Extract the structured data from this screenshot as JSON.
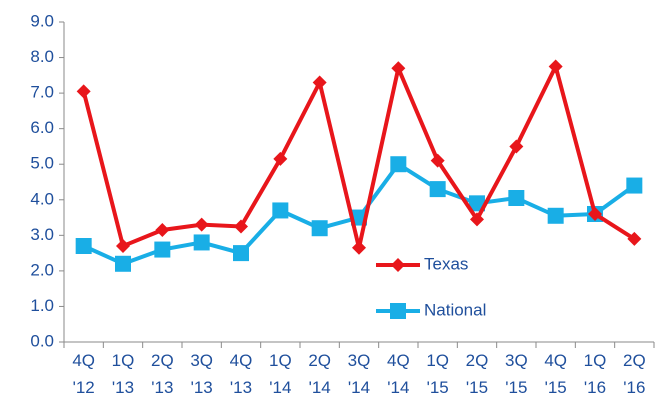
{
  "chart_data": {
    "type": "line",
    "categories": [
      "4Q '12",
      "1Q '13",
      "2Q '13",
      "3Q '13",
      "4Q '13",
      "1Q '14",
      "2Q '14",
      "3Q '14",
      "4Q '14",
      "1Q '15",
      "2Q '15",
      "3Q '15",
      "4Q '15",
      "1Q '16",
      "2Q '16"
    ],
    "series": [
      {
        "name": "Texas",
        "color": "#e8161b",
        "marker": "diamond",
        "values": [
          7.05,
          2.7,
          3.15,
          3.3,
          3.25,
          5.15,
          7.3,
          2.65,
          7.7,
          5.1,
          3.45,
          5.5,
          7.75,
          3.6,
          2.9
        ]
      },
      {
        "name": "National",
        "color": "#19aee6",
        "marker": "square",
        "values": [
          2.7,
          2.2,
          2.6,
          2.8,
          2.5,
          3.7,
          3.2,
          3.5,
          5.0,
          4.3,
          3.9,
          4.05,
          3.55,
          3.6,
          4.4
        ]
      }
    ],
    "ylim": [
      0,
      9
    ],
    "yticks": [
      {
        "value": 0,
        "label": "0.0"
      },
      {
        "value": 1,
        "label": "1.0"
      },
      {
        "value": 2,
        "label": "2.0"
      },
      {
        "value": 3,
        "label": "3.0"
      },
      {
        "value": 4,
        "label": "4.0"
      },
      {
        "value": 5,
        "label": "5.0"
      },
      {
        "value": 6,
        "label": "6.0"
      },
      {
        "value": 7,
        "label": "7.0"
      },
      {
        "value": 8,
        "label": "8.0"
      },
      {
        "value": 9,
        "label": "9.0"
      }
    ],
    "grid": false
  }
}
